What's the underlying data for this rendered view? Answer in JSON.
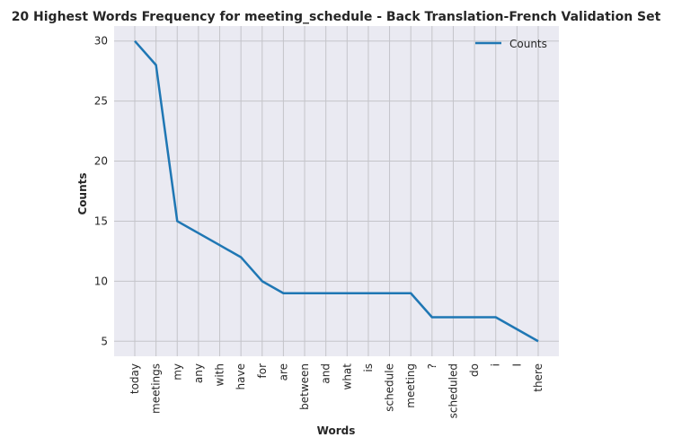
{
  "chart_data": {
    "type": "line",
    "title": "20 Highest Words Frequency for meeting_schedule - Back Translation-French Validation Set",
    "xlabel": "Words",
    "ylabel": "Counts",
    "categories": [
      "today",
      "meetings",
      "my",
      "any",
      "with",
      "have",
      "for",
      "are",
      "between",
      "and",
      "what",
      "is",
      "schedule",
      "meeting",
      "?",
      "scheduled",
      "do",
      "i",
      "I",
      "there"
    ],
    "series": [
      {
        "name": "Counts",
        "values": [
          30,
          28,
          15,
          14,
          13,
          12,
          10,
          9,
          9,
          9,
          9,
          9,
          9,
          9,
          7,
          7,
          7,
          7,
          6,
          5
        ],
        "color": "#1f77b4"
      }
    ],
    "yticks": [
      5,
      10,
      15,
      20,
      25,
      30
    ],
    "ylim": [
      3.75,
      31.25
    ],
    "grid": true,
    "legend_position": "top-right",
    "background_color": "#eaeaf2",
    "grid_color": "#c4c4c9"
  }
}
